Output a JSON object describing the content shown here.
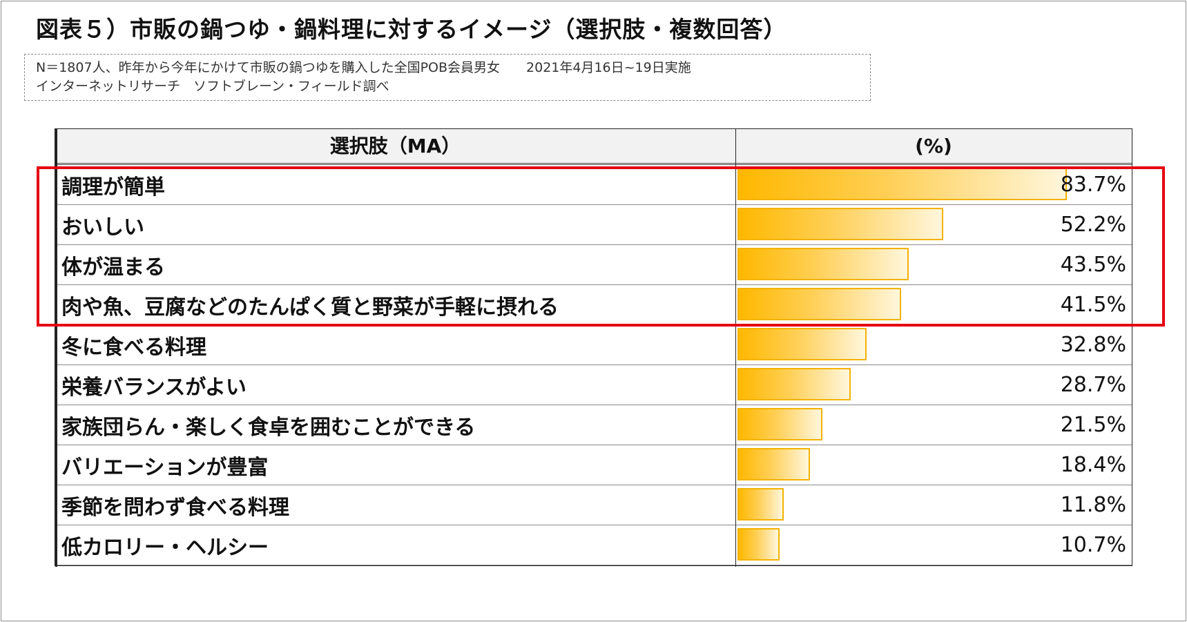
{
  "title": "図表５）市販の鍋つゆ・鍋料理に対するイメージ（選択肢・複数回答）",
  "note": {
    "line1": "N＝1807人、昨年から今年にかけて市販の鍋つゆを購入した全国POB会員男女　　2021年4月16日~19日実施",
    "line2": "インターネットリサーチ　ソフトブレーン・フィールド調べ"
  },
  "table": {
    "col1_header": "選択肢（MA）",
    "col2_header": "(%)"
  },
  "chart_data": {
    "type": "bar",
    "orientation": "horizontal",
    "categories": [
      "調理が簡単",
      "おいしい",
      "体が温まる",
      "肉や魚、豆腐などのたんぱく質と野菜が手軽に摂れる",
      "冬に食べる料理",
      "栄養バランスがよい",
      "家族団らん・楽しく食卓を囲むことができる",
      "バリエーションが豊富",
      "季節を問わず食べる料理",
      "低カロリー・ヘルシー"
    ],
    "values": [
      83.7,
      52.2,
      43.5,
      41.5,
      32.8,
      28.7,
      21.5,
      18.4,
      11.8,
      10.7
    ],
    "value_labels": [
      "83.7%",
      "52.2%",
      "43.5%",
      "41.5%",
      "32.8%",
      "28.7%",
      "21.5%",
      "18.4%",
      "11.8%",
      "10.7%"
    ],
    "xlim": [
      0,
      100
    ],
    "highlighted_rows": [
      0,
      1,
      2,
      3
    ],
    "colors": {
      "bar_start": "#ffb800",
      "bar_end": "#fff6dc",
      "bar_border": "#f3b200",
      "highlight": "#e60012"
    }
  }
}
